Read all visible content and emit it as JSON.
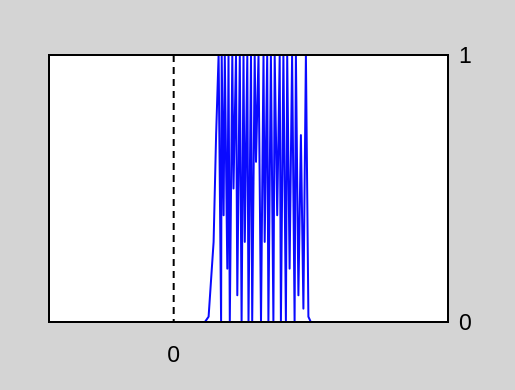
{
  "colors": {
    "background": "#d4d4d4",
    "plot_background": "#ffffff",
    "series": "#0a0aff",
    "axis": "#000000"
  },
  "chart_data": {
    "type": "line",
    "title": "",
    "xlabel": "",
    "ylabel": "",
    "xlim": [
      -1.0,
      2.2
    ],
    "ylim": [
      0,
      1
    ],
    "grid": false,
    "x_ticks": [
      {
        "value": 0,
        "label": "0"
      }
    ],
    "y_ticks_right": [
      {
        "value": 0,
        "label": "0"
      },
      {
        "value": 1,
        "label": "1"
      }
    ],
    "reference_lines": [
      {
        "x": 0,
        "style": "dashed"
      }
    ],
    "series": [
      {
        "x": [
          -1.0,
          0.0,
          0.25,
          0.28,
          0.32,
          0.34,
          0.36,
          0.38,
          0.385,
          0.4,
          0.41,
          0.43,
          0.44,
          0.45,
          0.47,
          0.48,
          0.5,
          0.51,
          0.53,
          0.545,
          0.56,
          0.57,
          0.59,
          0.6,
          0.62,
          0.63,
          0.65,
          0.66,
          0.68,
          0.7,
          0.72,
          0.73,
          0.75,
          0.76,
          0.78,
          0.8,
          0.81,
          0.83,
          0.85,
          0.86,
          0.88,
          0.9,
          0.91,
          0.93,
          0.95,
          0.97,
          0.98,
          1.0,
          1.02,
          1.04,
          1.06,
          1.08,
          1.1,
          2.2
        ],
        "y": [
          0,
          0,
          0,
          0.02,
          0.3,
          0.7,
          1,
          0,
          1,
          0.4,
          1,
          0.2,
          1,
          0,
          1,
          0.5,
          1,
          0.1,
          1,
          0,
          1,
          0.3,
          1,
          0,
          1,
          0,
          1,
          0.6,
          1,
          0,
          1,
          0.3,
          1,
          0,
          1,
          0,
          1,
          0.4,
          1,
          0,
          1,
          0,
          1,
          0.2,
          1,
          0,
          1,
          0.1,
          0.7,
          0.05,
          1,
          0.02,
          0,
          0
        ]
      }
    ]
  }
}
